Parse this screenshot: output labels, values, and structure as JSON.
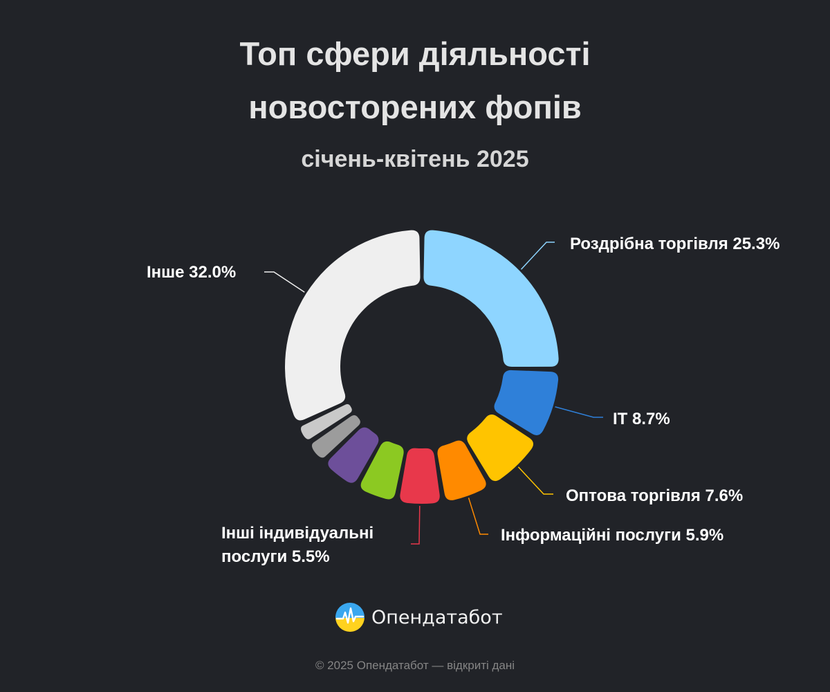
{
  "header": {
    "title_line_1": "Топ сфери діяльності",
    "title_line_2": "новосторених фопів",
    "subtitle": "січень-квітень 2025"
  },
  "chart_data": {
    "type": "pie",
    "donut": true,
    "title": "Топ сфери діяльності новосторених фопів",
    "subtitle": "січень-квітень 2025",
    "unit": "%",
    "slices": [
      {
        "label": "Роздрібна торгівля",
        "value": 25.3,
        "value_label": "25.3%",
        "color": "#8ed5ff"
      },
      {
        "label": "IT",
        "value": 8.7,
        "value_label": "8.7%",
        "color": "#2f80d9"
      },
      {
        "label": "Оптова торгівля",
        "value": 7.6,
        "value_label": "7.6%",
        "color": "#ffc400"
      },
      {
        "label": "Інформаційні послуги",
        "value": 5.9,
        "value_label": "5.9%",
        "color": "#ff8a00"
      },
      {
        "label": "Інші індивідуальні послуги",
        "value": 5.5,
        "value_label": "5.5%",
        "color": "#e8384b"
      },
      {
        "value": 5.0,
        "color": "#8cc922"
      },
      {
        "value": 4.8,
        "color": "#6d4f9a"
      },
      {
        "value": 2.8,
        "color": "#9c9c9c"
      },
      {
        "value": 2.4,
        "color": "#c9c9c9"
      },
      {
        "label": "Інше",
        "value": 32.0,
        "value_label": "32.0%",
        "color": "#efefef"
      }
    ],
    "labels": {
      "retail": "Роздрібна торгівля 25.3%",
      "it": "IT 8.7%",
      "wholesale": "Оптова торгівля 7.6%",
      "info": "Інформаційні послуги 5.9%",
      "other_individual_line_1": "Інші індивідуальні",
      "other_individual_line_2": "послуги 5.5%",
      "other": "Інше 32.0%"
    }
  },
  "branding": {
    "logo_icon": "opendatabot-logo-icon",
    "name": "Опендатабот"
  },
  "footer": {
    "text": "© 2025 Опендатабот — відкриті дані"
  }
}
